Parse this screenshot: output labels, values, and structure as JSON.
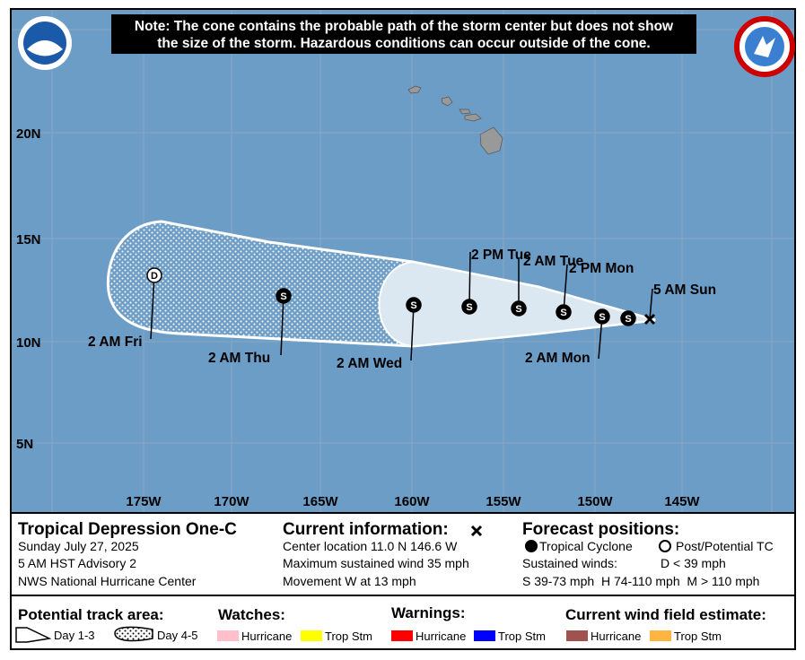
{
  "note": {
    "line1": "Note: The cone contains the probable path of the storm center but does not show",
    "line2": "the size of the storm. Hazardous conditions can occur outside of the cone."
  },
  "map": {
    "lat_labels": [
      "20N",
      "15N",
      "10N",
      "5N"
    ],
    "lon_labels": [
      "175W",
      "170W",
      "165W",
      "160W",
      "155W",
      "150W",
      "145W"
    ],
    "points": [
      {
        "label": "5 AM Sun"
      },
      {
        "symbol": "S"
      },
      {
        "symbol": "S",
        "label": "2 AM Mon"
      },
      {
        "symbol": "S",
        "label": "2 PM Mon"
      },
      {
        "symbol": "S",
        "label": "2 AM Tue"
      },
      {
        "symbol": "S",
        "label": "2 PM Tue"
      },
      {
        "symbol": "S",
        "label": "2 AM Wed"
      },
      {
        "symbol": "S",
        "label": "2 AM Thu"
      },
      {
        "symbol": "D",
        "label": "2 AM Fri"
      }
    ]
  },
  "storm": {
    "name": "Tropical Depression One-C",
    "date": "Sunday July 27, 2025",
    "advisory": "5 AM HST Advisory 2",
    "center": "NWS National Hurricane Center"
  },
  "current": {
    "title": "Current information:",
    "location": "Center location 11.0 N 146.6 W",
    "wind": "Maximum sustained wind 35 mph",
    "movement": "Movement W at 13 mph"
  },
  "forecast": {
    "title": "Forecast positions:",
    "tc": "Tropical Cyclone",
    "post": "Post/Potential TC",
    "winds": "Sustained winds:",
    "d": "D < 39 mph",
    "scale": "S 39-73 mph  H 74-110 mph  M > 110 mph"
  },
  "legend": {
    "track_title": "Potential track area:",
    "day13": "Day 1-3",
    "day45": "Day 4-5",
    "watches": "Watches:",
    "watch_hurricane": "Hurricane",
    "watch_ts": "Trop Stm",
    "warnings": "Warnings:",
    "warn_hurricane": "Hurricane",
    "warn_ts": "Trop Stm",
    "wind_title": "Current wind field estimate:",
    "wind_hurricane": "Hurricane",
    "wind_ts": "Trop Stm"
  }
}
